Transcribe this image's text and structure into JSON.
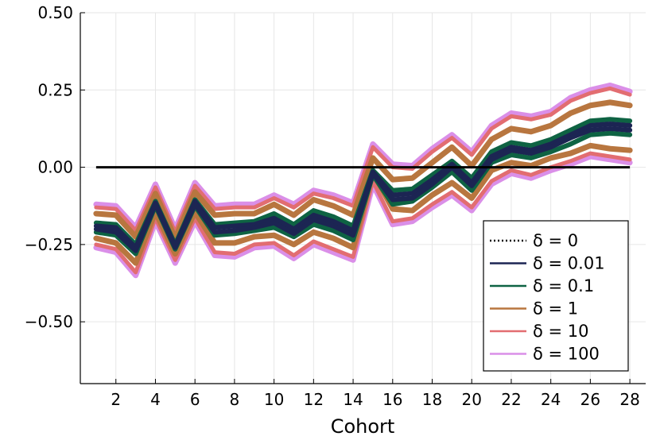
{
  "chart_data": {
    "type": "line",
    "title": "",
    "xlabel": "Cohort",
    "ylabel": "",
    "xlim": [
      0.2,
      28.8
    ],
    "ylim": [
      -0.7,
      0.5
    ],
    "x_ticks": [
      2,
      4,
      6,
      8,
      10,
      12,
      14,
      16,
      18,
      20,
      22,
      24,
      26,
      28
    ],
    "x_tick_labels": [
      "2",
      "4",
      "6",
      "8",
      "10",
      "12",
      "14",
      "16",
      "18",
      "20",
      "22",
      "24",
      "26",
      "28"
    ],
    "y_ticks": [
      -0.5,
      -0.25,
      0.0,
      0.25,
      0.5
    ],
    "y_tick_labels": [
      "−0.50",
      "−0.25",
      "0.00",
      "0.25",
      "0.50"
    ],
    "grid": true,
    "legend_position": "bottom-right",
    "x": [
      1,
      2,
      3,
      4,
      5,
      6,
      7,
      8,
      9,
      10,
      11,
      12,
      13,
      14,
      15,
      16,
      17,
      18,
      19,
      20,
      21,
      22,
      23,
      24,
      25,
      26,
      27,
      28
    ],
    "reference": {
      "name": "δ = 0",
      "value": 0.0,
      "color": "#000000",
      "style": "dotted-legend"
    },
    "series": [
      {
        "name": "δ = 100",
        "color": "#DA8FE8",
        "width": 7,
        "bands": [
          [
            -0.12,
            -0.125,
            -0.195,
            -0.055,
            -0.2,
            -0.05,
            -0.125,
            -0.12,
            -0.12,
            -0.09,
            -0.12,
            -0.075,
            -0.09,
            -0.115,
            0.075,
            0.01,
            0.005,
            0.06,
            0.105,
            0.05,
            0.135,
            0.175,
            0.165,
            0.18,
            0.225,
            0.25,
            0.265,
            0.245
          ],
          [
            -0.26,
            -0.275,
            -0.35,
            -0.175,
            -0.31,
            -0.175,
            -0.285,
            -0.29,
            -0.26,
            -0.255,
            -0.295,
            -0.25,
            -0.275,
            -0.3,
            -0.055,
            -0.185,
            -0.175,
            -0.13,
            -0.09,
            -0.14,
            -0.055,
            -0.02,
            -0.035,
            -0.01,
            0.01,
            0.035,
            0.025,
            0.015
          ]
        ]
      },
      {
        "name": "δ = 10",
        "color": "#E26D71",
        "width": 5,
        "bands": [
          [
            -0.13,
            -0.135,
            -0.205,
            -0.065,
            -0.21,
            -0.06,
            -0.135,
            -0.13,
            -0.13,
            -0.1,
            -0.13,
            -0.085,
            -0.1,
            -0.125,
            0.065,
            0.0,
            -0.005,
            0.05,
            0.095,
            0.04,
            0.125,
            0.165,
            0.155,
            0.17,
            0.215,
            0.24,
            0.255,
            0.235
          ],
          [
            -0.25,
            -0.265,
            -0.34,
            -0.165,
            -0.3,
            -0.165,
            -0.275,
            -0.28,
            -0.25,
            -0.245,
            -0.285,
            -0.24,
            -0.265,
            -0.29,
            -0.045,
            -0.175,
            -0.165,
            -0.12,
            -0.08,
            -0.13,
            -0.045,
            -0.01,
            -0.025,
            0.0,
            0.02,
            0.045,
            0.035,
            0.025
          ]
        ]
      },
      {
        "name": "δ = 1",
        "color": "#B8763F",
        "width": 7,
        "bands": [
          [
            -0.15,
            -0.155,
            -0.225,
            -0.085,
            -0.23,
            -0.08,
            -0.155,
            -0.15,
            -0.15,
            -0.12,
            -0.155,
            -0.105,
            -0.125,
            -0.155,
            0.03,
            -0.04,
            -0.035,
            0.015,
            0.065,
            0.005,
            0.09,
            0.125,
            0.115,
            0.135,
            0.175,
            0.2,
            0.21,
            0.2
          ],
          [
            -0.23,
            -0.245,
            -0.31,
            -0.145,
            -0.28,
            -0.145,
            -0.245,
            -0.245,
            -0.225,
            -0.22,
            -0.25,
            -0.21,
            -0.23,
            -0.26,
            -0.015,
            -0.135,
            -0.14,
            -0.09,
            -0.05,
            -0.1,
            -0.01,
            0.015,
            0.005,
            0.03,
            0.045,
            0.07,
            0.06,
            0.055
          ]
        ]
      },
      {
        "name": "δ = 0.1",
        "color": "#0E6343",
        "width": 6,
        "bands": [
          [
            -0.18,
            -0.185,
            -0.25,
            -0.11,
            -0.25,
            -0.105,
            -0.185,
            -0.18,
            -0.175,
            -0.15,
            -0.185,
            -0.14,
            -0.16,
            -0.19,
            -0.01,
            -0.075,
            -0.07,
            -0.025,
            0.02,
            -0.035,
            0.05,
            0.08,
            0.07,
            0.09,
            0.12,
            0.15,
            0.155,
            0.15
          ],
          [
            -0.21,
            -0.22,
            -0.28,
            -0.125,
            -0.265,
            -0.125,
            -0.22,
            -0.215,
            -0.205,
            -0.195,
            -0.225,
            -0.185,
            -0.205,
            -0.235,
            -0.025,
            -0.12,
            -0.11,
            -0.065,
            -0.015,
            -0.075,
            0.015,
            0.04,
            0.03,
            0.05,
            0.075,
            0.105,
            0.11,
            0.105
          ]
        ]
      },
      {
        "name": "δ = 0.01",
        "color": "#1C2553",
        "width": 6,
        "bands": [
          [
            -0.19,
            -0.195,
            -0.26,
            -0.115,
            -0.255,
            -0.11,
            -0.195,
            -0.19,
            -0.185,
            -0.165,
            -0.2,
            -0.155,
            -0.175,
            -0.205,
            -0.015,
            -0.09,
            -0.085,
            -0.04,
            0.01,
            -0.05,
            0.035,
            0.065,
            0.055,
            0.075,
            0.105,
            0.135,
            0.14,
            0.135
          ],
          [
            -0.2,
            -0.21,
            -0.27,
            -0.12,
            -0.26,
            -0.12,
            -0.21,
            -0.205,
            -0.195,
            -0.18,
            -0.215,
            -0.17,
            -0.19,
            -0.22,
            -0.02,
            -0.105,
            -0.1,
            -0.055,
            0.0,
            -0.06,
            0.025,
            0.055,
            0.045,
            0.065,
            0.095,
            0.12,
            0.125,
            0.12
          ]
        ]
      }
    ],
    "legend": [
      {
        "label": "δ = 0",
        "color": "#000000",
        "style": "dotted"
      },
      {
        "label": "δ = 0.01",
        "color": "#1C2553",
        "style": "solid"
      },
      {
        "label": "δ = 0.1",
        "color": "#0E6343",
        "style": "solid"
      },
      {
        "label": "δ = 1",
        "color": "#B8763F",
        "style": "solid"
      },
      {
        "label": "δ = 10",
        "color": "#E26D71",
        "style": "solid"
      },
      {
        "label": "δ = 100",
        "color": "#DA8FE8",
        "style": "solid"
      }
    ]
  }
}
